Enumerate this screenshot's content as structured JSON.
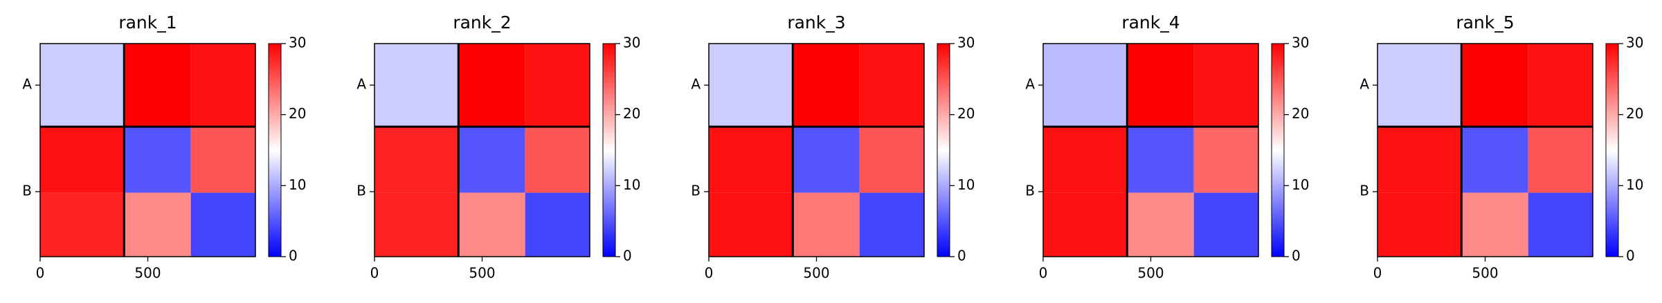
{
  "chart_data": [
    {
      "type": "heatmap",
      "title": "rank_1",
      "x_edges": [
        0,
        390,
        700,
        1000
      ],
      "y_edges": [
        0,
        390,
        700,
        1000
      ],
      "values": [
        [
          12,
          30,
          29
        ],
        [
          29,
          5,
          25
        ],
        [
          28,
          22,
          4
        ]
      ],
      "chain_breaks": [
        390
      ],
      "xlim": [
        0,
        1000
      ],
      "ylim": [
        1000,
        0
      ],
      "xticks": [
        0,
        500
      ],
      "yticks": [
        {
          "value": 195,
          "label": "A"
        },
        {
          "value": 695,
          "label": "B"
        }
      ],
      "clim": [
        0,
        30
      ],
      "cticks": [
        0,
        10,
        20,
        30
      ],
      "colormap": "bwr"
    },
    {
      "type": "heatmap",
      "title": "rank_2",
      "x_edges": [
        0,
        390,
        700,
        1000
      ],
      "y_edges": [
        0,
        390,
        700,
        1000
      ],
      "values": [
        [
          12,
          30,
          29
        ],
        [
          28,
          5,
          25
        ],
        [
          28,
          22,
          4
        ]
      ],
      "chain_breaks": [
        390
      ],
      "xlim": [
        0,
        1000
      ],
      "ylim": [
        1000,
        0
      ],
      "xticks": [
        0,
        500
      ],
      "yticks": [
        {
          "value": 195,
          "label": "A"
        },
        {
          "value": 695,
          "label": "B"
        }
      ],
      "clim": [
        0,
        30
      ],
      "cticks": [
        0,
        10,
        20,
        30
      ],
      "colormap": "bwr"
    },
    {
      "type": "heatmap",
      "title": "rank_3",
      "x_edges": [
        0,
        390,
        700,
        1000
      ],
      "y_edges": [
        0,
        390,
        700,
        1000
      ],
      "values": [
        [
          12,
          30,
          29
        ],
        [
          29,
          5,
          25
        ],
        [
          29,
          23,
          4
        ]
      ],
      "chain_breaks": [
        390
      ],
      "xlim": [
        0,
        1000
      ],
      "ylim": [
        1000,
        0
      ],
      "xticks": [
        0,
        500
      ],
      "yticks": [
        {
          "value": 195,
          "label": "A"
        },
        {
          "value": 695,
          "label": "B"
        }
      ],
      "clim": [
        0,
        30
      ],
      "cticks": [
        0,
        10,
        20,
        30
      ],
      "colormap": "bwr"
    },
    {
      "type": "heatmap",
      "title": "rank_4",
      "x_edges": [
        0,
        390,
        700,
        1000
      ],
      "y_edges": [
        0,
        390,
        700,
        1000
      ],
      "values": [
        [
          11,
          30,
          29
        ],
        [
          29,
          5,
          24
        ],
        [
          29,
          22,
          4
        ]
      ],
      "chain_breaks": [
        390
      ],
      "xlim": [
        0,
        1000
      ],
      "ylim": [
        1000,
        0
      ],
      "xticks": [
        0,
        500
      ],
      "yticks": [
        {
          "value": 195,
          "label": "A"
        },
        {
          "value": 695,
          "label": "B"
        }
      ],
      "clim": [
        0,
        30
      ],
      "cticks": [
        0,
        10,
        20,
        30
      ],
      "colormap": "bwr"
    },
    {
      "type": "heatmap",
      "title": "rank_5",
      "x_edges": [
        0,
        390,
        700,
        1000
      ],
      "y_edges": [
        0,
        390,
        700,
        1000
      ],
      "values": [
        [
          12,
          30,
          29
        ],
        [
          29,
          5,
          25
        ],
        [
          29,
          22,
          4
        ]
      ],
      "chain_breaks": [
        390
      ],
      "xlim": [
        0,
        1000
      ],
      "ylim": [
        1000,
        0
      ],
      "xticks": [
        0,
        500
      ],
      "yticks": [
        {
          "value": 195,
          "label": "A"
        },
        {
          "value": 695,
          "label": "B"
        }
      ],
      "clim": [
        0,
        30
      ],
      "cticks": [
        0,
        10,
        20,
        30
      ],
      "colormap": "bwr"
    }
  ]
}
